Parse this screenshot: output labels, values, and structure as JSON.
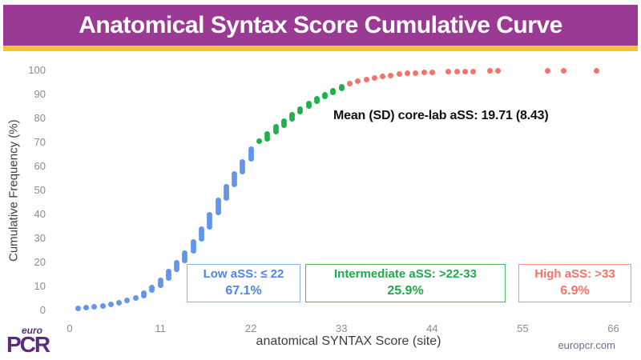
{
  "header": {
    "title": "Anatomical Syntax Score Cumulative Curve",
    "bg_color": "#9b3a94",
    "accent_color": "#f0c330"
  },
  "chart_data": {
    "type": "scatter",
    "title": "Anatomical Syntax Score Cumulative Curve",
    "xlabel": "anatomical SYNTAX Score (site)",
    "ylabel": "Cumulative Frequency (%)",
    "xlim": [
      0,
      66
    ],
    "ylim": [
      0,
      100
    ],
    "xticks": [
      0,
      11,
      22,
      33,
      44,
      55,
      66
    ],
    "yticks": [
      0,
      10,
      20,
      30,
      40,
      50,
      60,
      70,
      80,
      90,
      100
    ],
    "grid": false,
    "annotation": "Mean (SD) core-lab aSS: 19.71 (8.43)",
    "series": [
      {
        "name": "Low aSS (≤ 22)",
        "color": "#6295ec",
        "points": [
          [
            1,
            0.7
          ],
          [
            2,
            1.1
          ],
          [
            3,
            1.5
          ],
          [
            4,
            1.9
          ],
          [
            5,
            2.4
          ],
          [
            6,
            3.1
          ],
          [
            7,
            4.1
          ],
          [
            8,
            5.3
          ],
          [
            9,
            7.2
          ],
          [
            10,
            9.6
          ],
          [
            11,
            12.6
          ],
          [
            12,
            16.2
          ],
          [
            13,
            19.8
          ],
          [
            14,
            23.8
          ],
          [
            15,
            28.6
          ],
          [
            16,
            34.0
          ],
          [
            17,
            40.0
          ],
          [
            18,
            46.0
          ],
          [
            19,
            51.5
          ],
          [
            20,
            56.8
          ],
          [
            21,
            62.0
          ],
          [
            22,
            67.1
          ]
        ]
      },
      {
        "name": "Intermediate aSS (>22-33)",
        "color": "#22b04c",
        "points": [
          [
            23,
            70.6
          ],
          [
            24,
            73.6
          ],
          [
            25,
            76.4
          ],
          [
            26,
            79.0
          ],
          [
            27,
            81.6
          ],
          [
            28,
            84.0
          ],
          [
            29,
            86.2
          ],
          [
            30,
            88.2
          ],
          [
            31,
            90.0
          ],
          [
            32,
            91.6
          ],
          [
            33,
            93.1
          ]
        ]
      },
      {
        "name": "High aSS (>33)",
        "color": "#f4736b",
        "points": [
          [
            34,
            94.4
          ],
          [
            35,
            95.4
          ],
          [
            36,
            96.2
          ],
          [
            37,
            96.9
          ],
          [
            38,
            97.5
          ],
          [
            39,
            98.0
          ],
          [
            40,
            98.4
          ],
          [
            41,
            98.7
          ],
          [
            42,
            99.0
          ],
          [
            43,
            99.2
          ],
          [
            44,
            99.3
          ],
          [
            46,
            99.4
          ],
          [
            47,
            99.5
          ],
          [
            48,
            99.55
          ],
          [
            49,
            99.6
          ],
          [
            51,
            99.7
          ],
          [
            52,
            99.75
          ],
          [
            58,
            99.8
          ],
          [
            60,
            99.9
          ],
          [
            64,
            100
          ]
        ]
      }
    ]
  },
  "legend_boxes": [
    {
      "line1": "Low aSS: ≤ 22",
      "line2": "67.1%",
      "text_color": "#4d86ea",
      "border_color": "#8fb0ef"
    },
    {
      "line1": "Intermediate aSS: >22-33",
      "line2": "25.9%",
      "text_color": "#21a94a",
      "border_color": "#4cb768"
    },
    {
      "line1": "High aSS: >33",
      "line2": "6.9%",
      "text_color": "#f4736b",
      "border_color": "#f4938c"
    }
  ],
  "footer": {
    "logo_top": "euro",
    "logo_main": "PCR",
    "site": "europcr.com"
  }
}
